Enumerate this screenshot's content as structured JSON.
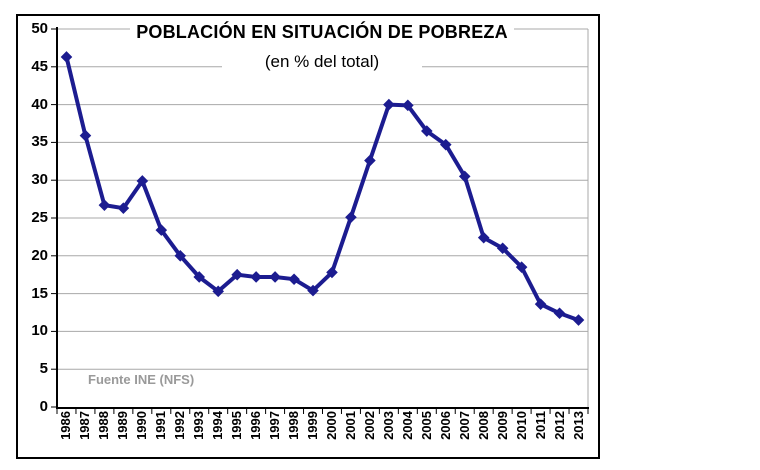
{
  "chart": {
    "title": "POBLACIÓN EN SITUACIÓN DE POBREZA",
    "subtitle": "(en % del total)",
    "source_note": "Fuente INE (NFS)",
    "colors": {
      "line": "#1c1c90",
      "marker": "#1c1c90",
      "gridline": "#a8a8a8",
      "axis": "#000000",
      "frame_border": "#000000",
      "source_text": "#9a9a9a",
      "label_text": "#000000"
    }
  },
  "chart_data": {
    "type": "line",
    "title": "POBLACIÓN EN SITUACIÓN DE POBREZA",
    "subtitle": "(en % del total)",
    "source": "Fuente INE (NFS)",
    "xlabel": "",
    "ylabel": "",
    "x": [
      "1986",
      "1987",
      "1988",
      "1989",
      "1990",
      "1991",
      "1992",
      "1993",
      "1994",
      "1995",
      "1996",
      "1997",
      "1998",
      "1999",
      "2000",
      "2001",
      "2002",
      "2003",
      "2004",
      "2005",
      "2006",
      "2007",
      "2008",
      "2009",
      "2010",
      "2011",
      "2012",
      "2013"
    ],
    "values": [
      46.3,
      35.9,
      26.7,
      26.3,
      29.9,
      23.4,
      20.0,
      17.2,
      15.3,
      17.5,
      17.2,
      17.2,
      16.9,
      15.4,
      17.8,
      25.1,
      32.6,
      40.0,
      39.9,
      36.5,
      34.7,
      30.5,
      22.4,
      21.0,
      18.5,
      13.6,
      12.4,
      11.5
    ],
    "ylim": [
      0,
      50
    ],
    "ytick_interval": 5,
    "grid": "horizontal-gray",
    "legend": false,
    "marker": "diamond",
    "x_label_rotation": -90
  }
}
